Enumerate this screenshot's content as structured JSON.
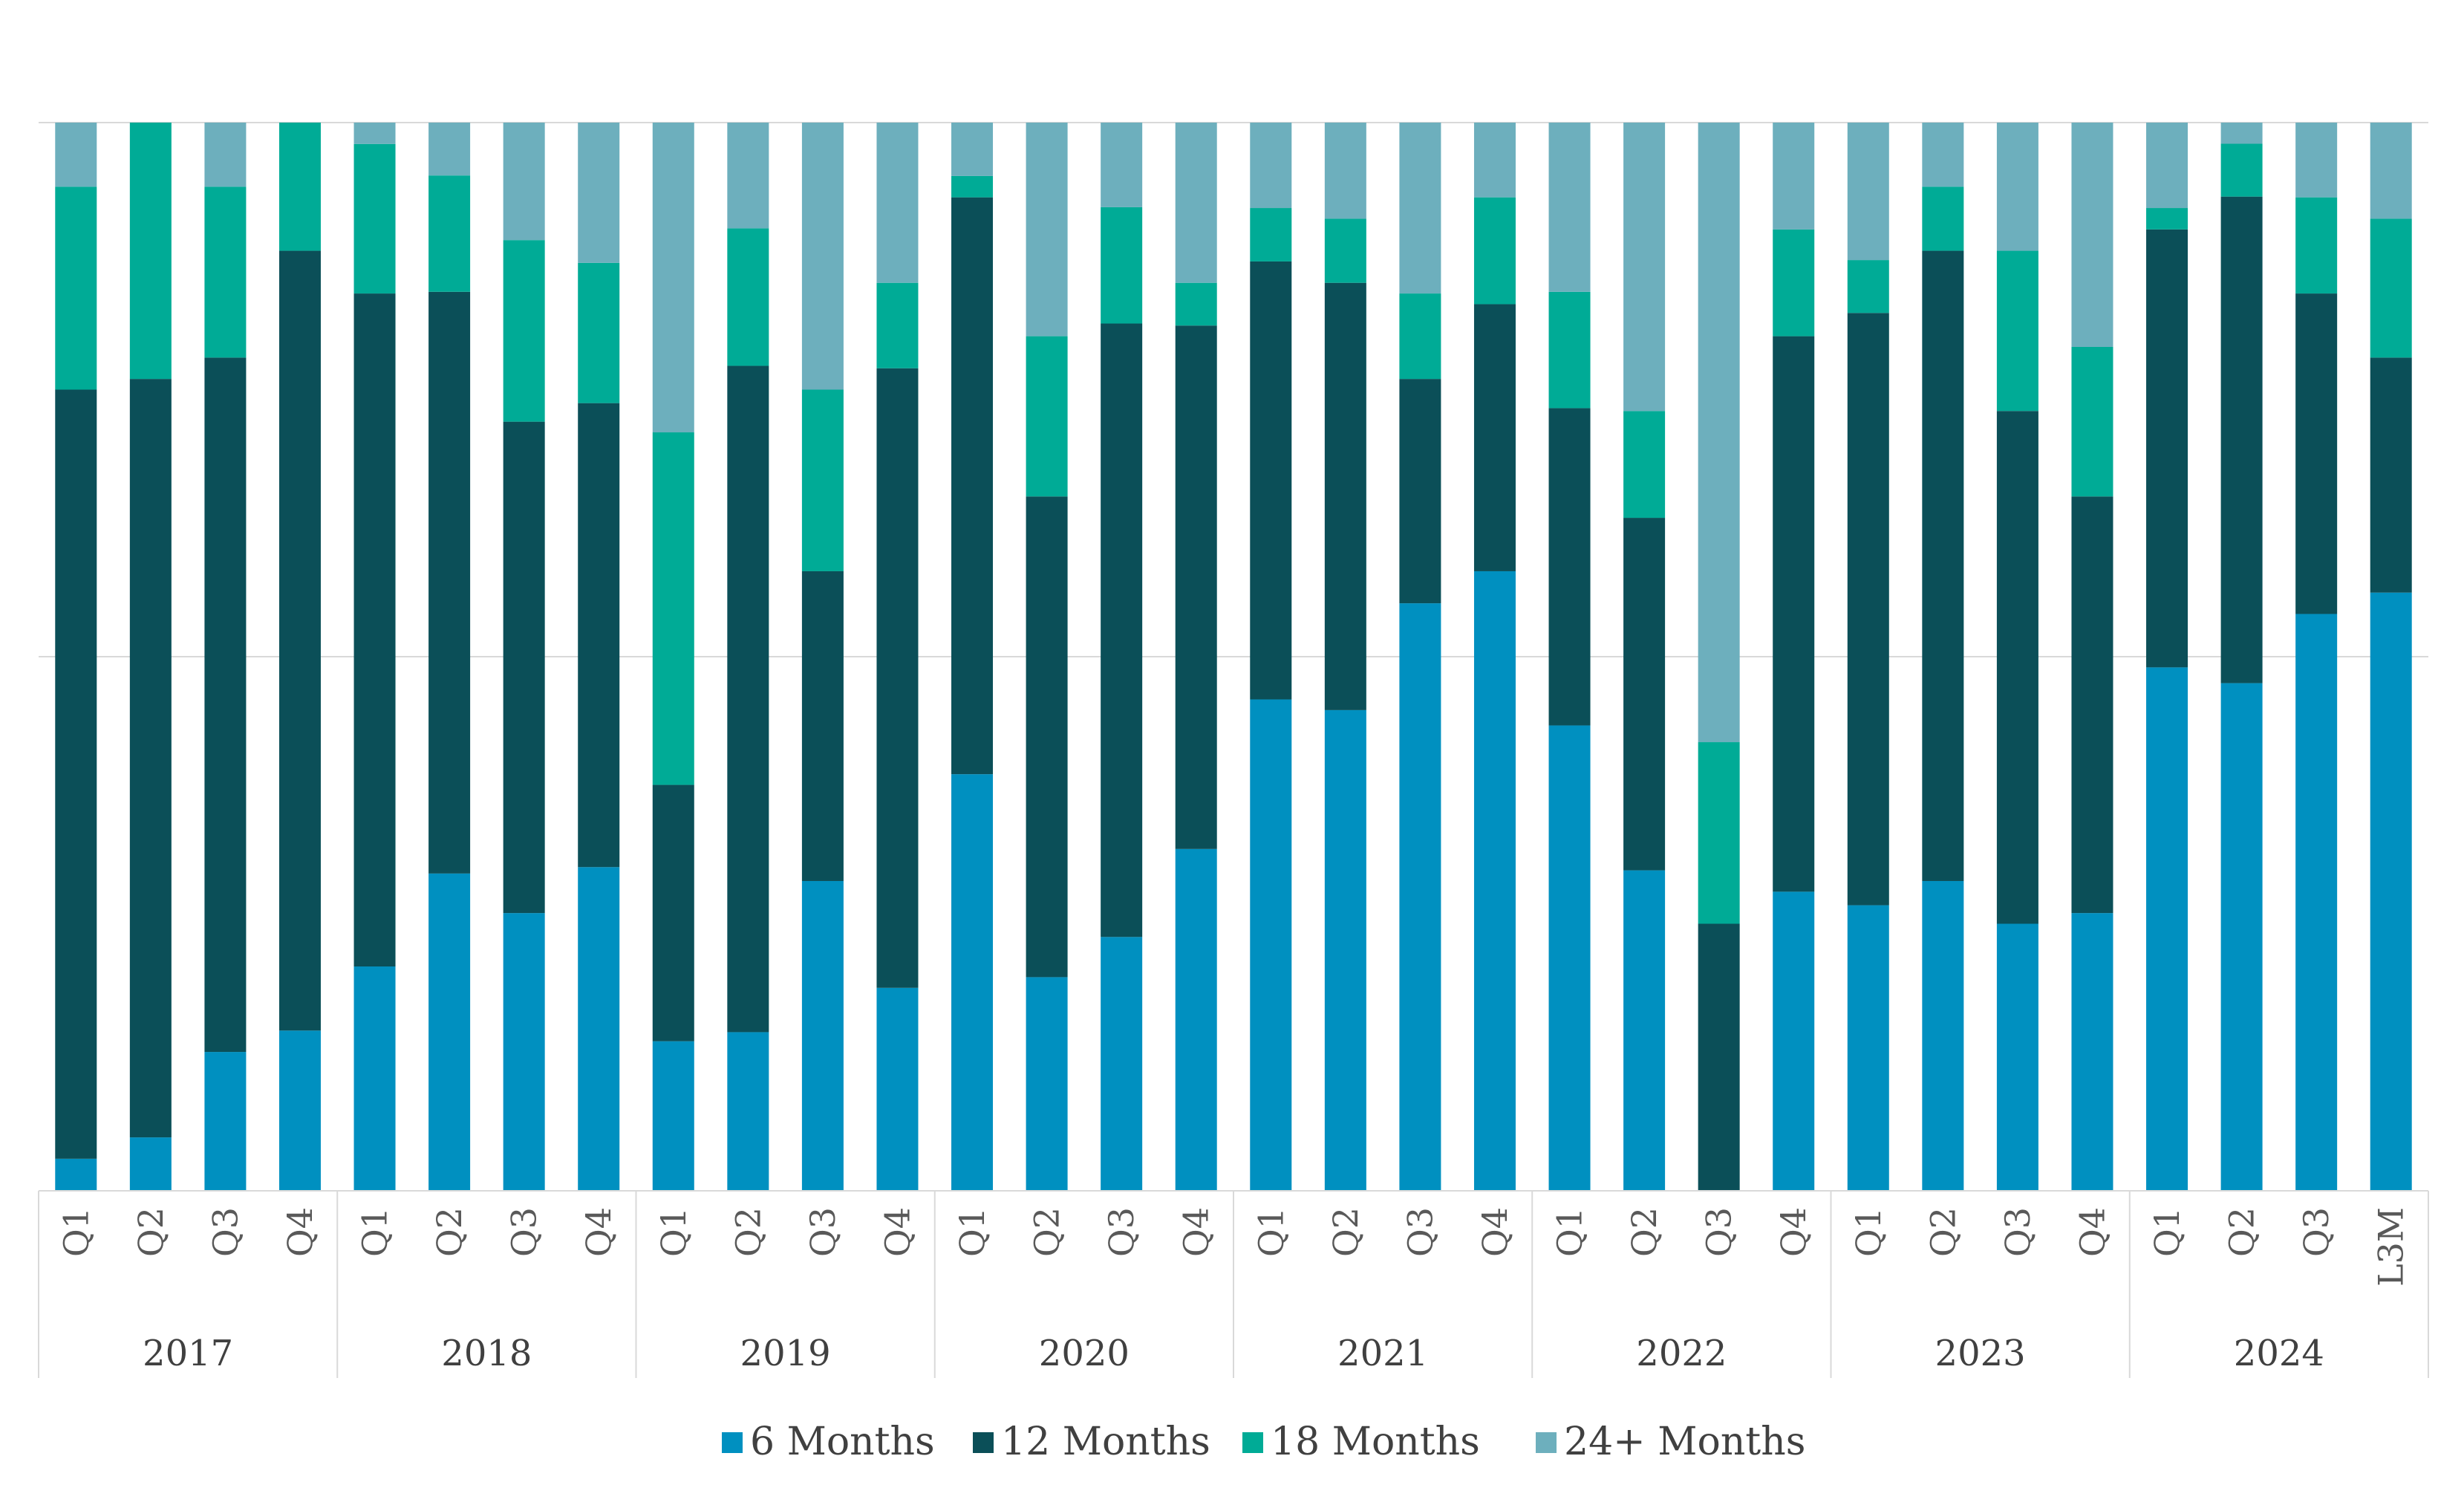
{
  "chart_data": {
    "type": "bar",
    "stacked": true,
    "normalized": true,
    "title": "",
    "xlabel": "",
    "ylabel": "",
    "ylim": [
      0,
      1
    ],
    "grid": true,
    "legend_position": "bottom",
    "categories": [
      "2017 Q1",
      "2017 Q2",
      "2017 Q3",
      "2017 Q4",
      "2018 Q1",
      "2018 Q2",
      "2018 Q3",
      "2018 Q4",
      "2019 Q1",
      "2019 Q2",
      "2019 Q3",
      "2019 Q4",
      "2020 Q1",
      "2020 Q2",
      "2020 Q3",
      "2020 Q4",
      "2021 Q1",
      "2021 Q2",
      "2021 Q3",
      "2021 Q4",
      "2022 Q1",
      "2022 Q2",
      "2022 Q3",
      "2022 Q4",
      "2023 Q1",
      "2023 Q2",
      "2023 Q3",
      "2023 Q4",
      "2024 Q1",
      "2024 Q2",
      "2024 Q3",
      "2024 L3M"
    ],
    "groups": [
      {
        "label": "2017",
        "ticks": [
          "Q1",
          "Q2",
          "Q3",
          "Q4"
        ]
      },
      {
        "label": "2018",
        "ticks": [
          "Q1",
          "Q2",
          "Q3",
          "Q4"
        ]
      },
      {
        "label": "2019",
        "ticks": [
          "Q1",
          "Q2",
          "Q3",
          "Q4"
        ]
      },
      {
        "label": "2020",
        "ticks": [
          "Q1",
          "Q2",
          "Q3",
          "Q4"
        ]
      },
      {
        "label": "2021",
        "ticks": [
          "Q1",
          "Q2",
          "Q3",
          "Q4"
        ]
      },
      {
        "label": "2022",
        "ticks": [
          "Q1",
          "Q2",
          "Q3",
          "Q4"
        ]
      },
      {
        "label": "2023",
        "ticks": [
          "Q1",
          "Q2",
          "Q3",
          "Q4"
        ]
      },
      {
        "label": "2024",
        "ticks": [
          "Q1",
          "Q2",
          "Q3",
          "L3M"
        ]
      }
    ],
    "series": [
      {
        "name": "6 Months",
        "color": "#0090C0",
        "values": [
          0.03,
          0.05,
          0.13,
          0.15,
          0.21,
          0.3,
          0.26,
          0.3,
          0.14,
          0.15,
          0.29,
          0.19,
          0.39,
          0.2,
          0.24,
          0.32,
          0.46,
          0.45,
          0.55,
          0.58,
          0.44,
          0.3,
          0.0,
          0.28,
          0.27,
          0.29,
          0.25,
          0.26,
          0.49,
          0.48,
          0.54,
          0.56
        ]
      },
      {
        "name": "12 Months",
        "color": "#0B4F58",
        "values": [
          0.72,
          0.71,
          0.65,
          0.73,
          0.63,
          0.55,
          0.46,
          0.43,
          0.24,
          0.63,
          0.29,
          0.58,
          0.54,
          0.45,
          0.58,
          0.49,
          0.41,
          0.4,
          0.21,
          0.25,
          0.3,
          0.33,
          0.25,
          0.52,
          0.56,
          0.59,
          0.48,
          0.39,
          0.41,
          0.46,
          0.3,
          0.22
        ]
      },
      {
        "name": "18 Months",
        "color": "#00AB96",
        "values": [
          0.19,
          0.24,
          0.16,
          0.12,
          0.14,
          0.11,
          0.17,
          0.13,
          0.33,
          0.13,
          0.17,
          0.08,
          0.02,
          0.15,
          0.11,
          0.04,
          0.05,
          0.06,
          0.08,
          0.1,
          0.11,
          0.1,
          0.17,
          0.1,
          0.05,
          0.06,
          0.15,
          0.14,
          0.02,
          0.05,
          0.09,
          0.13
        ]
      },
      {
        "name": "24+ Months",
        "color": "#6DAFBD",
        "values": [
          0.06,
          0.0,
          0.06,
          0.0,
          0.02,
          0.05,
          0.11,
          0.13,
          0.29,
          0.1,
          0.25,
          0.15,
          0.05,
          0.2,
          0.08,
          0.15,
          0.08,
          0.09,
          0.16,
          0.07,
          0.16,
          0.27,
          0.58,
          0.1,
          0.13,
          0.06,
          0.12,
          0.21,
          0.08,
          0.02,
          0.07,
          0.09
        ]
      }
    ]
  }
}
